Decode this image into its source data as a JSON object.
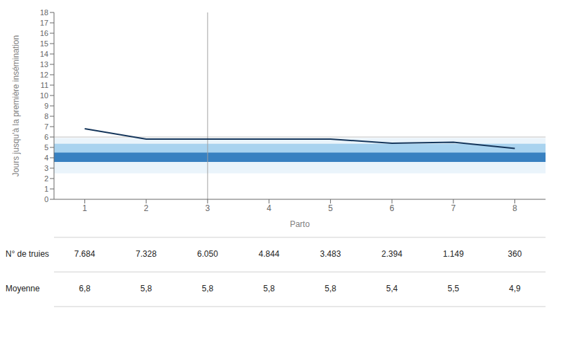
{
  "chart_data": {
    "type": "line",
    "x": [
      1,
      2,
      3,
      4,
      5,
      6,
      7,
      8
    ],
    "values": [
      6.8,
      5.8,
      5.8,
      5.8,
      5.8,
      5.4,
      5.5,
      4.9
    ],
    "color": "#14355a",
    "xlabel": "Parto",
    "ylabel": "Jours jusqu'à la première insémination",
    "xlim": [
      0.5,
      8.5
    ],
    "xticks": [
      1,
      2,
      3,
      4,
      5,
      6,
      7,
      8
    ],
    "ylim": [
      0,
      18
    ],
    "yticks": [
      0,
      1,
      2,
      3,
      4,
      5,
      6,
      7,
      8,
      9,
      10,
      11,
      12,
      13,
      14,
      15,
      16,
      17,
      18
    ],
    "grid": false,
    "bands": [
      {
        "ymin": 2.5,
        "ymax": 5.9,
        "color": "#aad4f0"
      },
      {
        "ymin": 3.6,
        "ymax": 5.35,
        "color": "#5aaae0"
      },
      {
        "ymin": 3.6,
        "ymax": 4.5,
        "color": "#2472b8"
      }
    ],
    "reference_lines": [
      {
        "axis": "y",
        "value": 6.0
      },
      {
        "axis": "x",
        "value": 3.0
      }
    ],
    "table": [
      {
        "label": "N° de truies",
        "values": [
          7684,
          7328,
          6050,
          4844,
          3483,
          2394,
          1149,
          360
        ],
        "value_labels": [
          "7.684",
          "7.328",
          "6.050",
          "4.844",
          "3.483",
          "2.394",
          "1.149",
          "360"
        ]
      },
      {
        "label": "Moyenne",
        "values": [
          6.8,
          5.8,
          5.8,
          5.8,
          5.8,
          5.4,
          5.5,
          4.9
        ],
        "value_labels": [
          "6,8",
          "5,8",
          "5,8",
          "5,8",
          "5,8",
          "5,4",
          "5,5",
          "4,9"
        ]
      }
    ]
  }
}
